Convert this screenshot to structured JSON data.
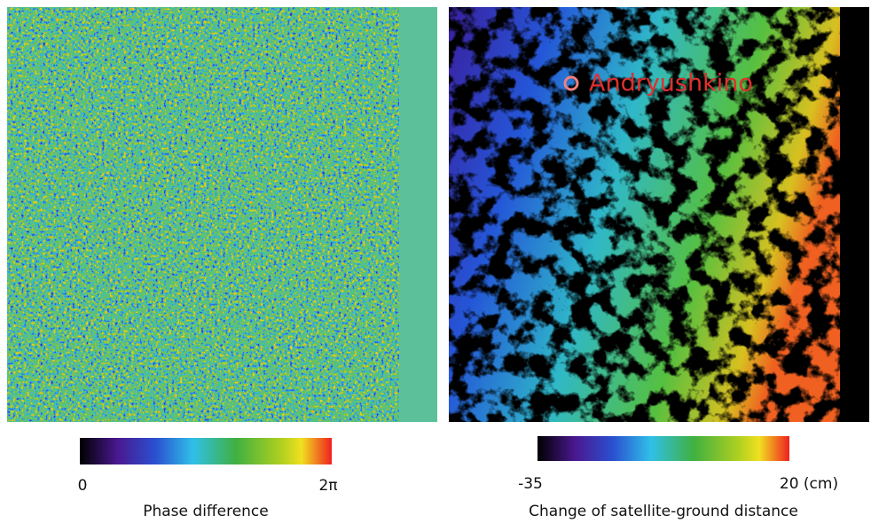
{
  "left_panel": {
    "colorbar": {
      "min_label": "0",
      "max_label": "2π",
      "title": "Phase difference"
    }
  },
  "right_panel": {
    "place_label": "Andryushkino",
    "colorbar": {
      "min_label": "-35",
      "max_label": "20 (cm)",
      "title": "Change of satellite-ground distance"
    }
  }
}
